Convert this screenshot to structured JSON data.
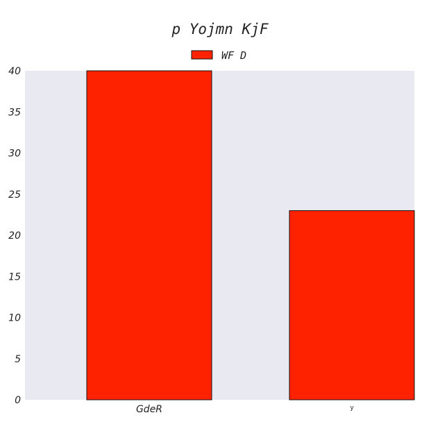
{
  "chart_data": {
    "type": "bar",
    "title": "p Yojmn KjF",
    "categories": [
      "GdeR",
      "y"
    ],
    "series": [
      {
        "name": "WF D",
        "values": [
          40,
          23
        ],
        "color": "#ff2200"
      }
    ],
    "xlabel": "",
    "ylabel": "",
    "ylim": [
      0,
      40
    ],
    "yticks": [
      0,
      5,
      10,
      15,
      20,
      25,
      30,
      35,
      40
    ],
    "grid": false,
    "legend": "top-center",
    "background": "#e9e9f2",
    "bar_edge_color": "#111111"
  }
}
